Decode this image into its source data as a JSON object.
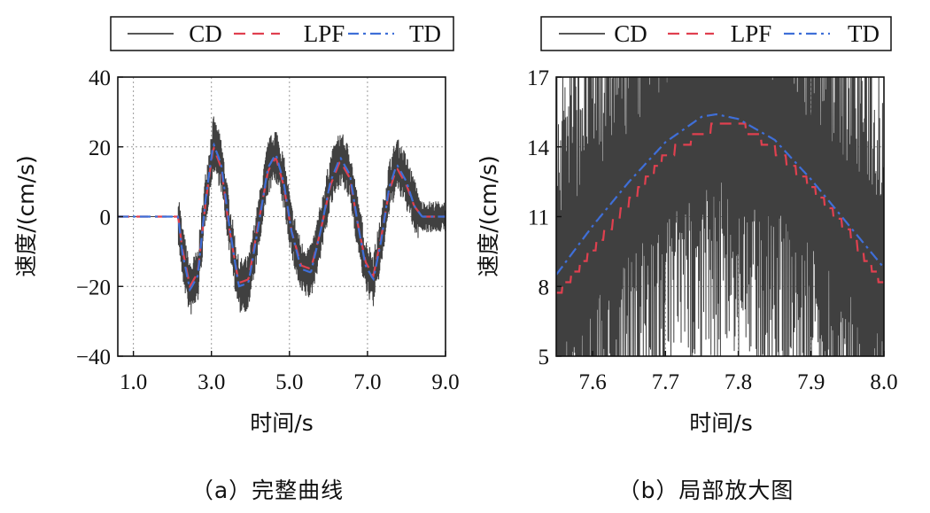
{
  "colors": {
    "cd": "#404040",
    "lpf": "#e0404f",
    "td": "#3f6fd8",
    "grid": "#9a9a9a",
    "axis": "#111111"
  },
  "chart_data": [
    {
      "type": "line",
      "panel": "a",
      "caption": "（a）完整曲线",
      "xlabel": "时间/s",
      "ylabel": "速度/(cm/s)",
      "xlim": [
        0.6,
        9.0
      ],
      "ylim": [
        -40,
        40
      ],
      "xticks": [
        1.0,
        3.0,
        5.0,
        7.0,
        9.0
      ],
      "xtick_labels": [
        "1.0",
        "3.0",
        "5.0",
        "7.0",
        "9.0"
      ],
      "yticks": [
        -40,
        -20,
        0,
        20,
        40
      ],
      "ytick_labels": [
        "−40",
        "−20",
        "0",
        "20",
        "40"
      ],
      "legend": [
        "CD",
        "LPF",
        "TD"
      ],
      "series": [
        {
          "name": "TD",
          "style": "dash-dot",
          "x": [
            0.6,
            2.15,
            2.25,
            2.45,
            2.65,
            2.85,
            3.05,
            3.25,
            3.45,
            3.7,
            3.95,
            4.2,
            4.45,
            4.65,
            4.85,
            5.05,
            5.3,
            5.55,
            5.8,
            6.05,
            6.3,
            6.55,
            6.75,
            6.95,
            7.15,
            7.35,
            7.55,
            7.75,
            8.0,
            8.2,
            8.4,
            8.7,
            9.0
          ],
          "y": [
            0,
            0,
            -10,
            -21,
            -17,
            5,
            21,
            15,
            -2,
            -20,
            -19,
            -3,
            14,
            18,
            10,
            -4,
            -15,
            -16,
            -4,
            10,
            17,
            12,
            -2,
            -14,
            -18,
            -7,
            8,
            15,
            10,
            3,
            0,
            0,
            0
          ]
        },
        {
          "name": "LPF",
          "style": "dash",
          "x": [
            0.6,
            2.15,
            2.25,
            2.45,
            2.65,
            2.85,
            3.05,
            3.25,
            3.45,
            3.7,
            3.95,
            4.2,
            4.45,
            4.65,
            4.85,
            5.05,
            5.3,
            5.55,
            5.8,
            6.05,
            6.3,
            6.55,
            6.75,
            6.95,
            7.15,
            7.35,
            7.55,
            7.75,
            8.0,
            8.2,
            8.4,
            8.7,
            9.0
          ],
          "y": [
            0,
            0,
            -9,
            -20,
            -16,
            4,
            20,
            14,
            -3,
            -19,
            -18,
            -2,
            13,
            17,
            9,
            -4,
            -14,
            -15,
            -4,
            9,
            16,
            11,
            -2,
            -13,
            -17,
            -6,
            7,
            14,
            9,
            3,
            0,
            0,
            0
          ]
        },
        {
          "name": "CD",
          "style": "solid",
          "noise_amplitude": 8,
          "x": [
            0.6,
            2.15,
            2.25,
            2.45,
            2.65,
            2.85,
            3.05,
            3.25,
            3.45,
            3.7,
            3.95,
            4.2,
            4.45,
            4.65,
            4.85,
            5.05,
            5.3,
            5.55,
            5.8,
            6.05,
            6.3,
            6.55,
            6.75,
            6.95,
            7.15,
            7.35,
            7.55,
            7.75,
            8.0,
            8.2,
            8.4,
            8.7,
            9.0
          ],
          "y": [
            0,
            0,
            -10,
            -21,
            -17,
            5,
            21,
            15,
            -2,
            -20,
            -19,
            -3,
            14,
            18,
            10,
            -4,
            -15,
            -16,
            -4,
            10,
            17,
            12,
            -2,
            -14,
            -18,
            -7,
            8,
            15,
            10,
            3,
            0,
            0,
            0
          ]
        }
      ]
    },
    {
      "type": "line",
      "panel": "b",
      "caption": "（b）局部放大图",
      "xlabel": "时间/s",
      "ylabel": "速度/(cm/s)",
      "xlim": [
        7.55,
        8.0
      ],
      "ylim": [
        5,
        17
      ],
      "xticks": [
        7.6,
        7.7,
        7.8,
        7.9,
        8.0
      ],
      "xtick_labels": [
        "7.6",
        "7.7",
        "7.8",
        "7.9",
        "8.0"
      ],
      "yticks": [
        5,
        8,
        11,
        14,
        17
      ],
      "ytick_labels": [
        "5",
        "8",
        "11",
        "14",
        "17"
      ],
      "legend": [
        "CD",
        "LPF",
        "TD"
      ],
      "series": [
        {
          "name": "TD",
          "style": "dash-dot",
          "x": [
            7.55,
            7.6,
            7.65,
            7.7,
            7.75,
            7.77,
            7.8,
            7.85,
            7.9,
            7.95,
            8.0
          ],
          "y": [
            8.5,
            10.6,
            12.5,
            14.2,
            15.3,
            15.4,
            15.2,
            14.3,
            12.6,
            10.7,
            8.8
          ]
        },
        {
          "name": "LPF",
          "style": "dash",
          "x": [
            7.55,
            7.6,
            7.65,
            7.7,
            7.75,
            7.78,
            7.8,
            7.85,
            7.9,
            7.95,
            8.0
          ],
          "y": [
            7.6,
            9.6,
            11.6,
            13.6,
            14.6,
            15.0,
            15.0,
            13.9,
            12.3,
            10.4,
            8.0
          ]
        },
        {
          "name": "CD",
          "style": "solid",
          "noise_amplitude": 9,
          "x": [
            7.55,
            7.6,
            7.65,
            7.7,
            7.75,
            7.78,
            7.8,
            7.85,
            7.9,
            7.95,
            8.0
          ],
          "y": [
            8.0,
            10.0,
            12.0,
            13.9,
            14.9,
            15.2,
            15.1,
            14.1,
            12.4,
            10.5,
            8.4
          ]
        }
      ]
    }
  ]
}
